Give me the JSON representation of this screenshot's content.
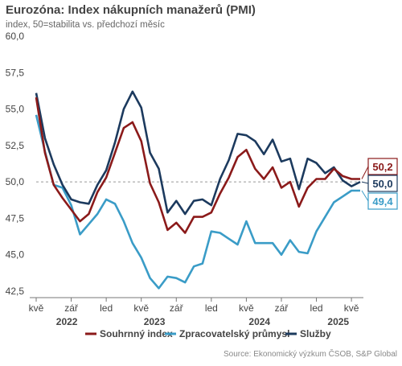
{
  "chart_data": {
    "type": "line",
    "title": "Eurozóna: Index nákupních manažerů (PMI)",
    "subtitle": "index, 50=stabilita vs. předchozí měsíc",
    "source": "Source: Ekonomický výzkum ČSOB, S&P Global",
    "x": [
      "2022-05",
      "2022-06",
      "2022-07",
      "2022-08",
      "2022-09",
      "2022-10",
      "2022-11",
      "2022-12",
      "2023-01",
      "2023-02",
      "2023-03",
      "2023-04",
      "2023-05",
      "2023-06",
      "2023-07",
      "2023-08",
      "2023-09",
      "2023-10",
      "2023-11",
      "2023-12",
      "2024-01",
      "2024-02",
      "2024-03",
      "2024-04",
      "2024-05",
      "2024-06",
      "2024-07",
      "2024-08",
      "2024-09",
      "2024-10",
      "2024-11",
      "2024-12",
      "2025-01",
      "2025-02",
      "2025-03",
      "2025-04",
      "2025-05",
      "2025-06"
    ],
    "x_tick_labels": [
      "kvě",
      "zář",
      "led",
      "kvě",
      "zář",
      "led",
      "kvě",
      "zář",
      "led",
      "kvě"
    ],
    "x_tick_positions": [
      "2022-05",
      "2022-09",
      "2023-01",
      "2023-05",
      "2023-09",
      "2024-01",
      "2024-05",
      "2024-09",
      "2025-01",
      "2025-05"
    ],
    "year_labels": [
      {
        "label": "2022",
        "at": "2022-08"
      },
      {
        "label": "2023",
        "at": "2023-06"
      },
      {
        "label": "2024",
        "at": "2024-06"
      },
      {
        "label": "2025",
        "at": "2025-03"
      }
    ],
    "ylim": [
      42.5,
      60.0
    ],
    "yticks": [
      "60,0",
      "57,5",
      "55,0",
      "52,5",
      "50,0",
      "47,5",
      "45,0",
      "42,5"
    ],
    "ytick_values": [
      60.0,
      57.5,
      55.0,
      52.5,
      50.0,
      47.5,
      45.0,
      42.5
    ],
    "reference_line": 50.0,
    "series": [
      {
        "name": "Souhrnný index",
        "color": "#8B1A1A",
        "end_label": "50,2",
        "values": [
          55.8,
          52.0,
          49.8,
          48.9,
          48.1,
          47.3,
          47.8,
          49.3,
          50.3,
          52.0,
          53.7,
          54.1,
          52.8,
          49.9,
          48.6,
          46.7,
          47.2,
          46.5,
          47.6,
          47.6,
          47.9,
          49.2,
          50.3,
          51.7,
          52.2,
          50.9,
          50.2,
          51.0,
          49.6,
          50.0,
          48.3,
          49.6,
          50.2,
          50.2,
          50.9,
          50.4,
          50.2,
          50.2
        ]
      },
      {
        "name": "Zpracovatelský průmysl",
        "color": "#3A9CC7",
        "end_label": "49,4",
        "values": [
          54.6,
          52.1,
          49.8,
          49.6,
          48.4,
          46.4,
          47.1,
          47.8,
          48.8,
          48.5,
          47.3,
          45.8,
          44.8,
          43.4,
          42.7,
          43.5,
          43.4,
          43.1,
          44.2,
          44.4,
          46.6,
          46.5,
          46.1,
          45.7,
          47.3,
          45.8,
          45.8,
          45.8,
          45.0,
          46.0,
          45.2,
          45.1,
          46.6,
          47.6,
          48.6,
          49.0,
          49.4,
          49.4
        ]
      },
      {
        "name": "Služby",
        "color": "#1C3A5E",
        "end_label": "50,0",
        "values": [
          56.1,
          53.0,
          51.2,
          49.8,
          48.8,
          48.6,
          48.5,
          49.8,
          50.8,
          52.7,
          55.0,
          56.2,
          55.1,
          52.0,
          50.9,
          47.9,
          48.7,
          47.8,
          48.7,
          48.8,
          48.4,
          50.2,
          51.5,
          53.3,
          53.2,
          52.8,
          51.9,
          52.9,
          51.4,
          51.6,
          49.5,
          51.6,
          51.3,
          50.6,
          51.0,
          50.1,
          49.7,
          50.0
        ]
      }
    ],
    "legend_position": "bottom",
    "grid": false
  }
}
